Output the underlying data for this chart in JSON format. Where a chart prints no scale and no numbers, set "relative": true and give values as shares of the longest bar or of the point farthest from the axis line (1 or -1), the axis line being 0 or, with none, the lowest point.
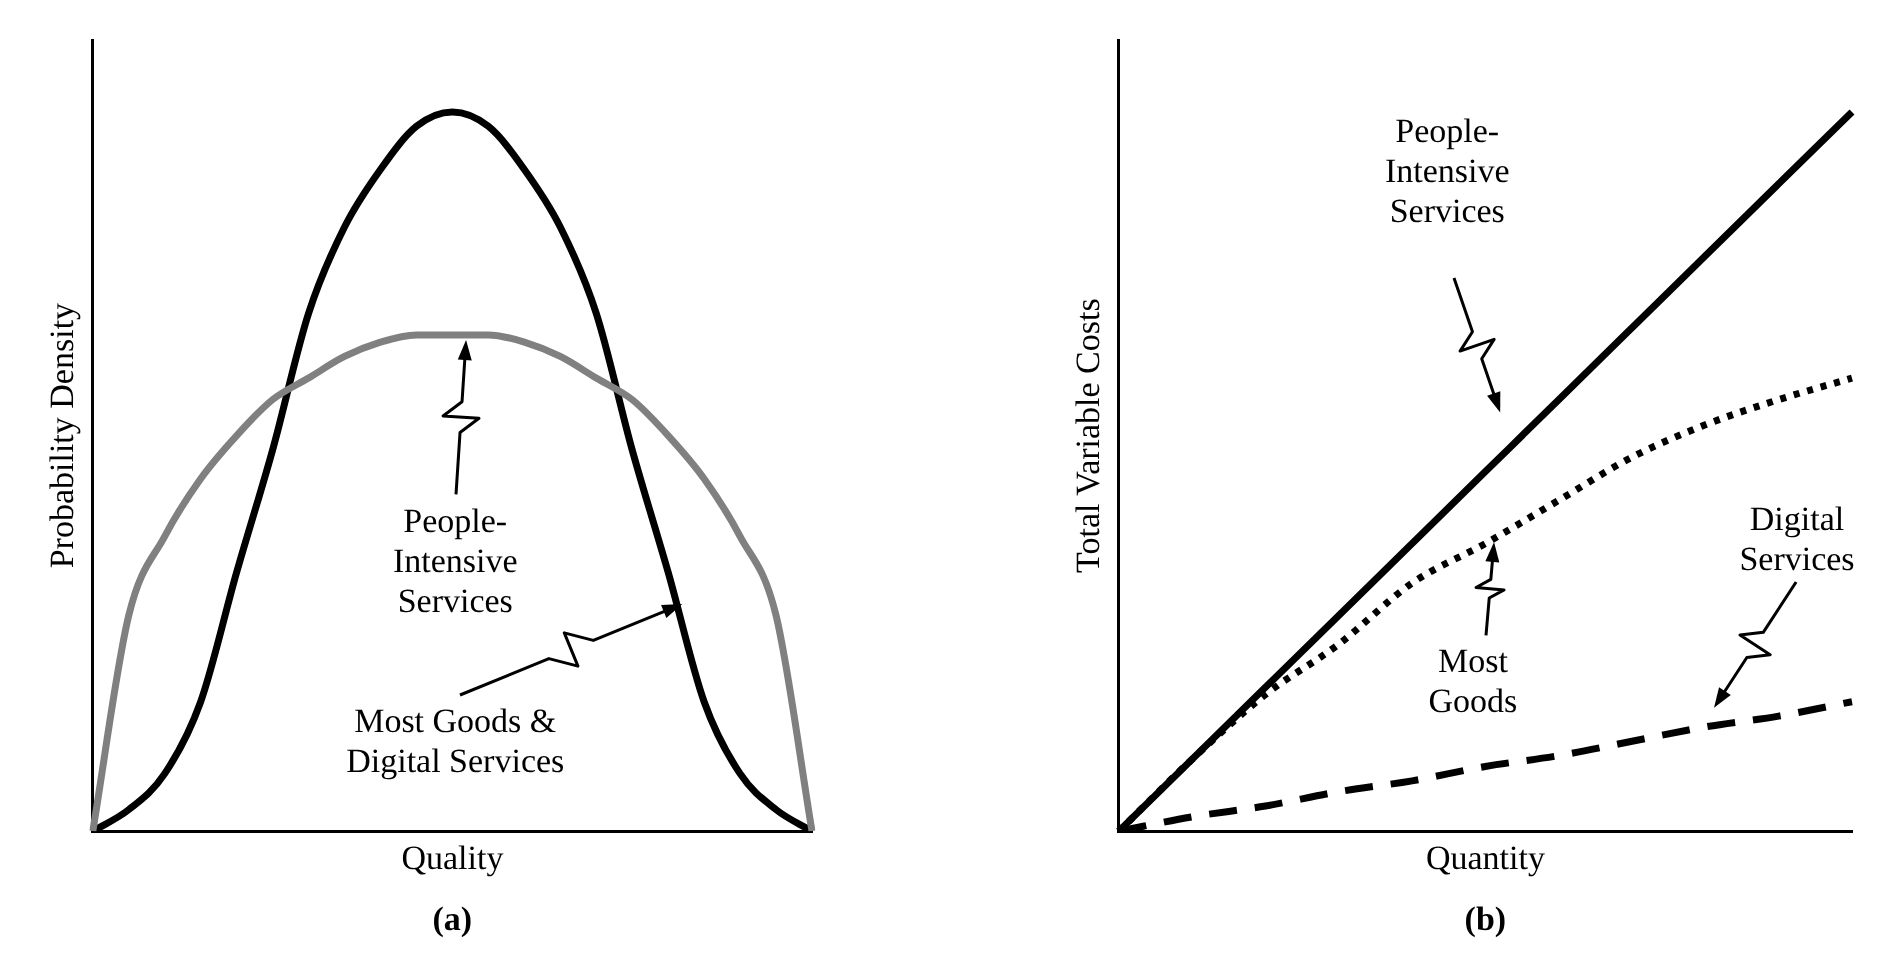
{
  "chart_data": [
    {
      "type": "line",
      "relative": true,
      "xlabel": "Quality",
      "ylabel": "Probability Density",
      "annotations": [
        "People-Intensive Services",
        "Most Goods & Digital Services",
        "(a)"
      ],
      "legend": false,
      "grid": false,
      "categories": [
        null,
        null,
        null,
        null,
        null,
        null,
        null,
        null,
        null,
        null,
        null,
        null,
        null,
        null,
        null,
        null,
        null,
        null,
        null,
        null,
        null
      ],
      "series": [
        {
          "color": "#808080",
          "line_style": "solid",
          "values": [
            0,
            0.3,
            0.41,
            0.49,
            0.55,
            0.6,
            0.63,
            0.66,
            0.68,
            0.69,
            0.69,
            0.69,
            0.68,
            0.66,
            0.63,
            0.6,
            0.55,
            0.49,
            0.41,
            0.3,
            0
          ]
        },
        {
          "color": "#000000",
          "line_style": "solid",
          "values": [
            0,
            0.03,
            0.08,
            0.18,
            0.36,
            0.53,
            0.72,
            0.84,
            0.92,
            0.98,
            1,
            0.98,
            0.92,
            0.84,
            0.72,
            0.53,
            0.36,
            0.18,
            0.08,
            0.03,
            0
          ]
        }
      ]
    },
    {
      "type": "line",
      "relative": true,
      "xlabel": "Quantity",
      "ylabel": "Total Variable Costs",
      "annotations": [
        "People-Intensive Services",
        "Most Goods",
        "Digital Services",
        "(b)"
      ],
      "legend": false,
      "grid": false,
      "categories": [
        null,
        null,
        null,
        null,
        null,
        null,
        null,
        null,
        null,
        null,
        null
      ],
      "series": [
        {
          "color": "#000000",
          "line_style": "solid",
          "values": [
            0,
            0.1,
            0.2,
            0.3,
            0.4,
            0.5,
            0.6,
            0.7,
            0.8,
            0.9,
            1
          ]
        },
        {
          "color": "#000000",
          "line_style": "dotted",
          "values": [
            0,
            0.1,
            0.19,
            0.26,
            0.345,
            0.4,
            0.46,
            0.52,
            0.565,
            0.6,
            0.63
          ]
        },
        {
          "color": "#000000",
          "line_style": "dashed",
          "values": [
            0,
            0.02,
            0.035,
            0.055,
            0.07,
            0.09,
            0.105,
            0.125,
            0.145,
            0.16,
            0.18
          ]
        }
      ]
    }
  ]
}
